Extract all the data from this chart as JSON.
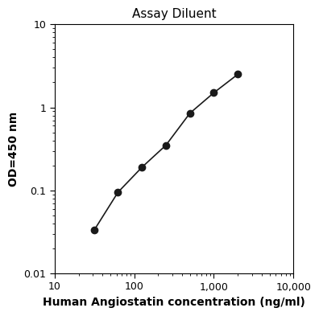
{
  "title": "Assay Diluent",
  "xlabel": "Human Angiostatin concentration (ng/ml)",
  "ylabel": "OD=450 nm",
  "x_data": [
    31.25,
    62.5,
    125,
    250,
    500,
    1000,
    2000
  ],
  "y_data": [
    0.033,
    0.095,
    0.19,
    0.35,
    0.85,
    1.5,
    2.5
  ],
  "xlim": [
    10,
    10000
  ],
  "ylim": [
    0.01,
    10
  ],
  "x_ticks": [
    10,
    100,
    1000,
    10000
  ],
  "x_tick_labels": [
    "10",
    "100",
    "1,000",
    "10,000"
  ],
  "y_ticks": [
    0.01,
    0.1,
    1,
    10
  ],
  "y_tick_labels": [
    "0.01",
    "0.1",
    "1",
    "10"
  ],
  "line_color": "#1a1a1a",
  "marker_color": "#1a1a1a",
  "marker_size": 6,
  "line_width": 1.2,
  "title_fontsize": 11,
  "xlabel_fontsize": 10,
  "ylabel_fontsize": 10,
  "tick_fontsize": 9,
  "background_color": "#ffffff"
}
